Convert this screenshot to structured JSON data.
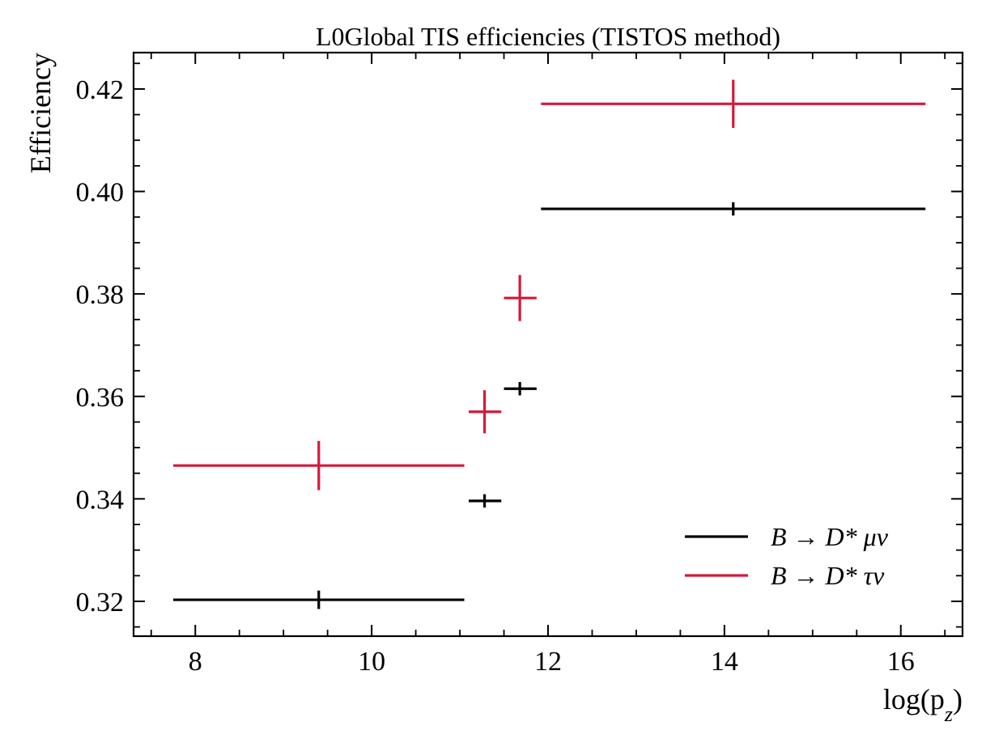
{
  "chart_data": {
    "type": "errorbar",
    "title": "L0Global TIS efficiencies (TISTOS method)",
    "xlabel": "log(p",
    "xlabel_sub": "z",
    "xlabel_close": ")",
    "ylabel": "Efficiency",
    "xlim": [
      7.3,
      16.7
    ],
    "ylim": [
      0.3132,
      0.4271
    ],
    "x_ticks": [
      8,
      10,
      12,
      14,
      16
    ],
    "x_tick_labels": [
      "8",
      "10",
      "12",
      "14",
      "16"
    ],
    "x_minor_step": 0.5,
    "y_ticks": [
      0.32,
      0.34,
      0.36,
      0.38,
      0.4,
      0.42
    ],
    "y_tick_labels": [
      "0.32",
      "0.34",
      "0.36",
      "0.38",
      "0.40",
      "0.42"
    ],
    "y_minor_step": 0.005,
    "grid": false,
    "legend_position": "lower-right",
    "series": [
      {
        "name": "B → D* μν",
        "color": "#000000",
        "points": [
          {
            "x": 9.4,
            "xlo": 7.75,
            "xhi": 11.05,
            "y": 0.3203,
            "yerr": 0.0018
          },
          {
            "x": 11.28,
            "xlo": 11.1,
            "xhi": 11.47,
            "y": 0.3396,
            "yerr": 0.0013
          },
          {
            "x": 11.68,
            "xlo": 11.5,
            "xhi": 11.87,
            "y": 0.3615,
            "yerr": 0.0013
          },
          {
            "x": 14.1,
            "xlo": 11.92,
            "xhi": 16.28,
            "y": 0.3966,
            "yerr": 0.0013
          }
        ]
      },
      {
        "name": "B → D* τν",
        "color": "#d6183a",
        "points": [
          {
            "x": 9.4,
            "xlo": 7.75,
            "xhi": 11.05,
            "y": 0.3465,
            "yerr": 0.0048
          },
          {
            "x": 11.28,
            "xlo": 11.1,
            "xhi": 11.47,
            "y": 0.357,
            "yerr": 0.0042
          },
          {
            "x": 11.68,
            "xlo": 11.5,
            "xhi": 11.87,
            "y": 0.3792,
            "yerr": 0.0045
          },
          {
            "x": 14.1,
            "xlo": 11.92,
            "xhi": 16.28,
            "y": 0.4171,
            "yerr": 0.0047
          }
        ]
      }
    ],
    "legend": [
      {
        "label": "B → D* μν",
        "color": "#000000"
      },
      {
        "label": "B → D* τν",
        "color": "#d6183a"
      }
    ]
  }
}
